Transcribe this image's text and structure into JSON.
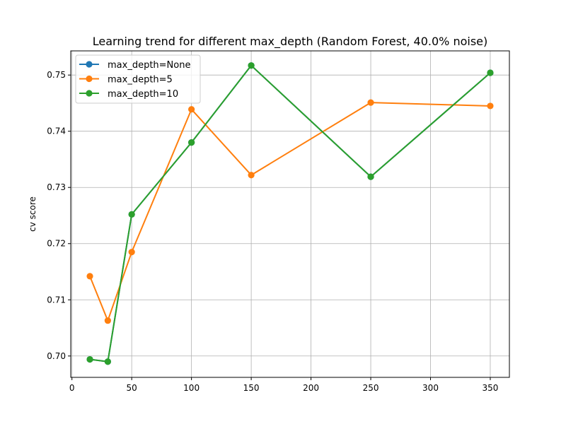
{
  "chart_data": {
    "type": "line",
    "title": "Learning trend for different max_depth (Random Forest, 40.0% noise)",
    "xlabel": "",
    "ylabel": "cv score",
    "xlim": [
      -1,
      366
    ],
    "ylim": [
      0.6962,
      0.7543
    ],
    "xticks": [
      0,
      50,
      100,
      150,
      200,
      250,
      300,
      350
    ],
    "yticks": [
      0.7,
      0.71,
      0.72,
      0.73,
      0.74,
      0.75
    ],
    "xtick_labels": [
      "0",
      "50",
      "100",
      "150",
      "200",
      "250",
      "300",
      "350"
    ],
    "ytick_labels": [
      "0.70",
      "0.71",
      "0.72",
      "0.73",
      "0.74",
      "0.75"
    ],
    "grid": true,
    "legend_position": "top-left",
    "x": [
      15,
      30,
      50,
      100,
      150,
      250,
      350
    ],
    "series": [
      {
        "name": "max_depth=None",
        "color": "#1f77b4",
        "values": [
          0.6994,
          0.699,
          0.7252,
          0.738,
          0.7517,
          0.7319,
          0.7504
        ]
      },
      {
        "name": "max_depth=5",
        "color": "#ff7f0e",
        "values": [
          0.7142,
          0.7063,
          0.7185,
          0.7439,
          0.7322,
          0.7451,
          0.7445
        ]
      },
      {
        "name": "max_depth=10",
        "color": "#2ca02c",
        "values": [
          0.6994,
          0.699,
          0.7252,
          0.738,
          0.7517,
          0.7319,
          0.7504
        ]
      }
    ]
  }
}
